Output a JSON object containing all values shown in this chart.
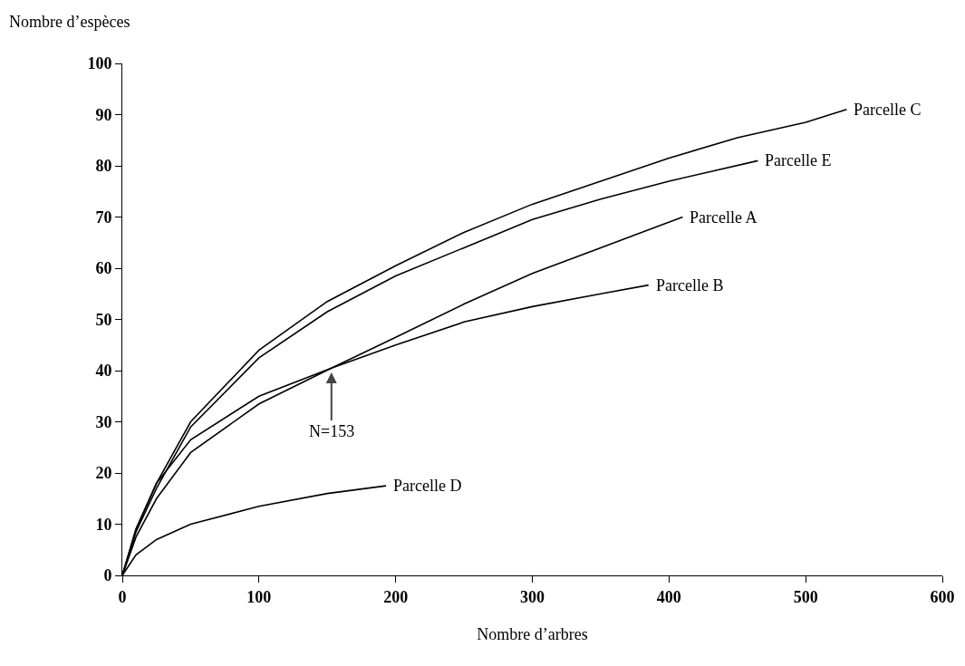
{
  "chart_data": {
    "type": "line",
    "xlabel": "Nombre d’arbres",
    "ylabel": "Nombre d’espèces",
    "xlim": [
      0,
      600
    ],
    "xticks": [
      0,
      100,
      200,
      300,
      400,
      500,
      600
    ],
    "ylim": [
      0,
      100
    ],
    "yticks": [
      0,
      10,
      20,
      30,
      40,
      50,
      60,
      70,
      80,
      90,
      100
    ],
    "grid": false,
    "legend": false,
    "marker": "none",
    "line_style": "solid",
    "annotations": [
      {
        "text": "N=153",
        "x": 153,
        "y": 40
      }
    ],
    "series": [
      {
        "name": "Parcelle C",
        "color": "#000000",
        "x": [
          0,
          10,
          25,
          50,
          100,
          150,
          200,
          250,
          300,
          350,
          400,
          450,
          500,
          530
        ],
        "values": [
          0,
          9,
          18,
          30,
          44,
          53.5,
          60.5,
          67,
          72.5,
          77,
          81.5,
          85.5,
          88.5,
          91
        ]
      },
      {
        "name": "Parcelle E",
        "color": "#000000",
        "x": [
          0,
          10,
          25,
          50,
          100,
          150,
          200,
          250,
          300,
          350,
          400,
          465
        ],
        "values": [
          0,
          8.5,
          17,
          29,
          42.5,
          51.5,
          58.5,
          64,
          69.5,
          73.5,
          77,
          81
        ]
      },
      {
        "name": "Parcelle A",
        "color": "#000000",
        "x": [
          0,
          10,
          25,
          50,
          100,
          153,
          200,
          250,
          300,
          350,
          410
        ],
        "values": [
          0,
          7.5,
          15,
          24,
          33.5,
          40.5,
          46.5,
          53,
          59,
          64,
          70
        ]
      },
      {
        "name": "Parcelle B",
        "color": "#000000",
        "x": [
          0,
          10,
          25,
          50,
          100,
          153,
          200,
          250,
          300,
          350,
          385
        ],
        "values": [
          0,
          9,
          18,
          26.5,
          35,
          40.5,
          45,
          49.5,
          52.5,
          55,
          56.7
        ]
      },
      {
        "name": "Parcelle D",
        "color": "#000000",
        "x": [
          0,
          10,
          25,
          50,
          100,
          150,
          193
        ],
        "values": [
          0,
          4,
          7,
          10,
          13.5,
          16,
          17.5
        ]
      }
    ]
  }
}
